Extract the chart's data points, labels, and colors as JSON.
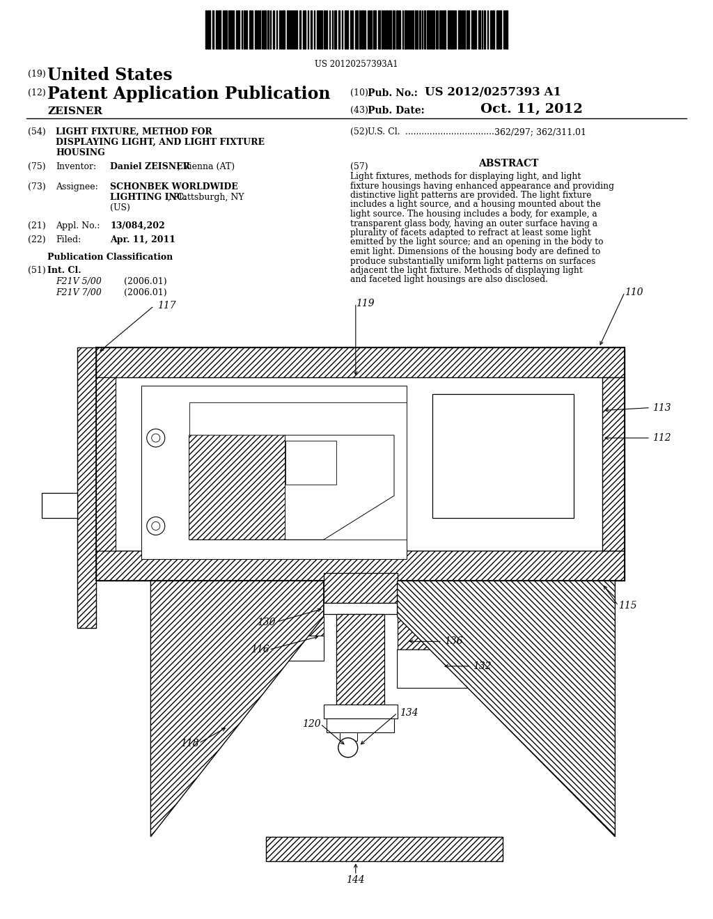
{
  "bg_color": "#ffffff",
  "barcode_text": "US 20120257393A1",
  "pub_no_value": "US 2012/0257393 A1",
  "pub_date_value": "Oct. 11, 2012",
  "applicant_name": "ZEISNER",
  "abstract_text": "Light fixtures, methods for displaying light, and light fixture housings having enhanced appearance and providing distinctive light patterns are provided. The light fixture includes a light source, and a housing mounted about the light source. The housing includes a body, for example, a transparent glass body, having an outer surface having a plurality of facets adapted to refract at least some light emitted by the light source; and an opening in the body to emit light. Dimensions of the housing body are defined to produce substantially uniform light patterns on surfaces adjacent the light fixture. Methods of displaying light and faceted light housings are also disclosed.",
  "field54_title": [
    "LIGHT FIXTURE, METHOD FOR",
    "DISPLAYING LIGHT, AND LIGHT FIXTURE",
    "HOUSING"
  ],
  "field73_line1": "SCHONBEK WORLDWIDE",
  "field73_line2_bold": "LIGHTING INC.",
  "field73_line2_normal": ", Plattsburgh, NY",
  "field73_line3": "(US)",
  "field21_value": "13/084,202",
  "field22_value": "Apr. 11, 2011",
  "field51_class1": "F21V 5/00",
  "field51_date1": "(2006.01)",
  "field51_class2": "F21V 7/00",
  "field51_date2": "(2006.01)"
}
